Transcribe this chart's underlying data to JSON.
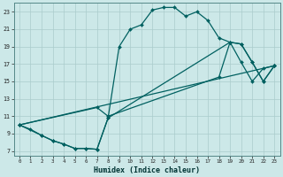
{
  "xlabel": "Humidex (Indice chaleur)",
  "bg_color": "#cce8e8",
  "grid_color": "#aacccc",
  "line_color": "#006060",
  "xlim": [
    -0.5,
    23.5
  ],
  "ylim": [
    6.5,
    24.0
  ],
  "xticks": [
    0,
    1,
    2,
    3,
    4,
    5,
    6,
    7,
    8,
    9,
    10,
    11,
    12,
    13,
    14,
    15,
    16,
    17,
    18,
    19,
    20,
    21,
    22,
    23
  ],
  "yticks": [
    7,
    9,
    11,
    13,
    15,
    17,
    19,
    21,
    23
  ],
  "line1_x": [
    0,
    1,
    2,
    3,
    4,
    5,
    6,
    7,
    8,
    9,
    10,
    11,
    12,
    13,
    14,
    15,
    16,
    17,
    18,
    19,
    20,
    21,
    22,
    23
  ],
  "line1_y": [
    10,
    9.5,
    8.8,
    8.2,
    7.8,
    7.3,
    7.3,
    7.2,
    10.8,
    19.0,
    21.0,
    21.5,
    23.2,
    23.5,
    23.5,
    22.5,
    23.0,
    22.0,
    20.0,
    19.5,
    17.2,
    15.0,
    16.5,
    16.8
  ],
  "line2_x": [
    0,
    2,
    3,
    4,
    5,
    6,
    7,
    8,
    19,
    20,
    21,
    22,
    23
  ],
  "line2_y": [
    10,
    8.8,
    8.2,
    7.8,
    7.3,
    7.3,
    7.2,
    10.8,
    19.5,
    19.3,
    17.2,
    15.0,
    16.8
  ],
  "line3_x": [
    0,
    7,
    8,
    18,
    19,
    20,
    21,
    22,
    23
  ],
  "line3_y": [
    10,
    12.0,
    11.0,
    15.5,
    19.5,
    19.3,
    17.2,
    15.0,
    16.8
  ],
  "line4_x": [
    0,
    23
  ],
  "line4_y": [
    10,
    16.8
  ],
  "marker_size": 2.0,
  "line_width": 0.9
}
